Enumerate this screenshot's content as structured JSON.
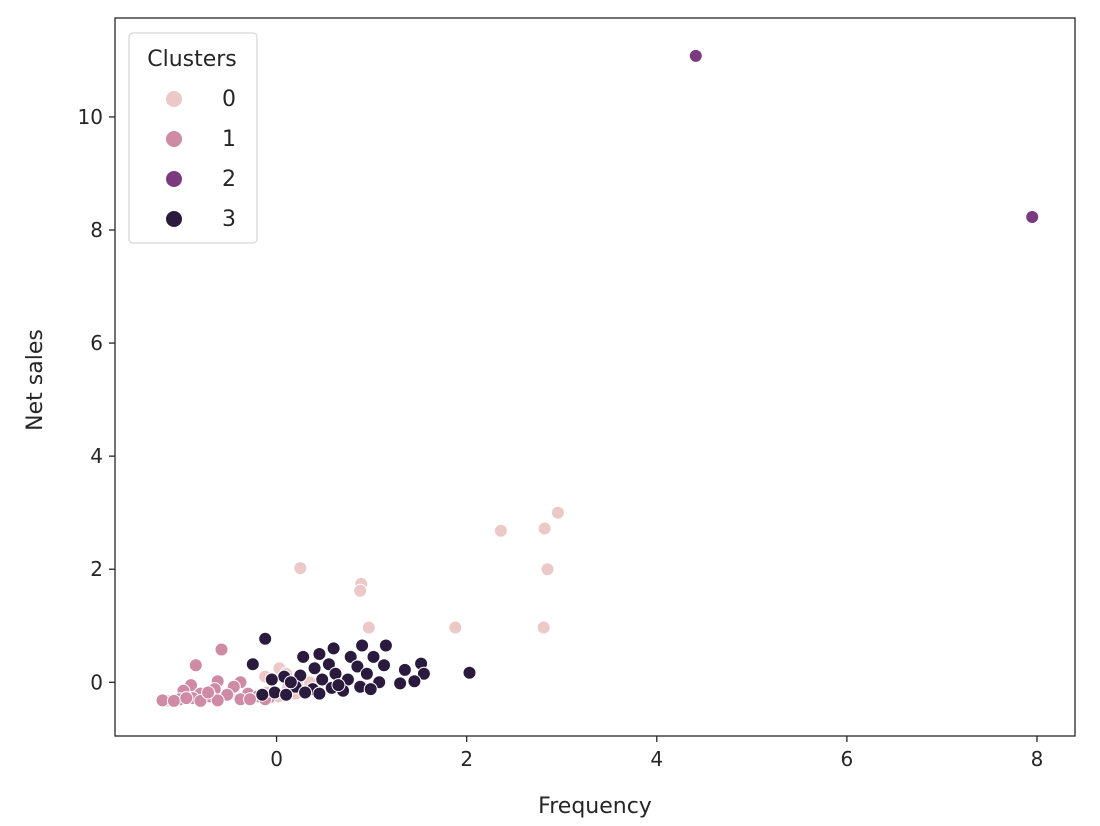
{
  "chart_data": {
    "type": "scatter",
    "title": "",
    "xlabel": "Frequency",
    "ylabel": "Net sales",
    "xlim": [
      -1.7,
      8.4
    ],
    "ylim": [
      -0.95,
      11.75
    ],
    "xticks": [
      0,
      2,
      4,
      6,
      8
    ],
    "yticks": [
      0,
      2,
      4,
      6,
      8,
      10
    ],
    "grid": false,
    "legend": {
      "title": "Clusters",
      "placement": "top-left",
      "entries": [
        "0",
        "1",
        "2",
        "3"
      ]
    },
    "series": [
      {
        "name": "0",
        "color": "#ecc9c7",
        "points": [
          [
            2.96,
            3.0
          ],
          [
            2.82,
            2.72
          ],
          [
            2.36,
            2.68
          ],
          [
            0.25,
            2.02
          ],
          [
            2.85,
            2.0
          ],
          [
            0.89,
            1.74
          ],
          [
            0.88,
            1.62
          ],
          [
            0.97,
            0.97
          ],
          [
            1.88,
            0.97
          ],
          [
            2.81,
            0.97
          ],
          [
            0.03,
            0.25
          ],
          [
            0.1,
            0.15
          ],
          [
            -0.12,
            0.1
          ],
          [
            0.22,
            -0.02
          ],
          [
            0.35,
            0.0
          ],
          [
            0.12,
            -0.1
          ],
          [
            -0.1,
            -0.18
          ],
          [
            -0.3,
            -0.2
          ],
          [
            -0.5,
            -0.22
          ],
          [
            -0.7,
            -0.25
          ],
          [
            -0.9,
            -0.28
          ],
          [
            -1.05,
            -0.3
          ],
          [
            -1.15,
            -0.33
          ],
          [
            0.02,
            -0.25
          ],
          [
            0.2,
            -0.2
          ]
        ]
      },
      {
        "name": "1",
        "color": "#d08ba4",
        "points": [
          [
            -0.58,
            0.58
          ],
          [
            -0.85,
            0.3
          ],
          [
            -0.62,
            0.02
          ],
          [
            -0.38,
            0.0
          ],
          [
            -0.9,
            -0.05
          ],
          [
            -0.45,
            -0.08
          ],
          [
            -0.65,
            -0.12
          ],
          [
            -0.98,
            -0.15
          ],
          [
            -0.8,
            -0.2
          ],
          [
            -0.3,
            -0.2
          ],
          [
            -0.52,
            -0.22
          ],
          [
            -0.7,
            -0.25
          ],
          [
            -0.88,
            -0.28
          ],
          [
            -1.02,
            -0.3
          ],
          [
            -1.2,
            -0.32
          ],
          [
            -0.2,
            -0.25
          ],
          [
            -0.08,
            -0.27
          ],
          [
            -0.38,
            -0.3
          ],
          [
            -0.62,
            -0.32
          ],
          [
            -0.8,
            -0.33
          ],
          [
            -1.08,
            -0.33
          ],
          [
            -0.95,
            -0.28
          ],
          [
            -0.28,
            -0.3
          ],
          [
            -0.12,
            -0.3
          ],
          [
            -0.72,
            -0.18
          ]
        ]
      },
      {
        "name": "2",
        "color": "#7b3a80",
        "points": [
          [
            4.41,
            11.08
          ],
          [
            7.95,
            8.23
          ]
        ]
      },
      {
        "name": "3",
        "color": "#2a1a3e",
        "points": [
          [
            -0.12,
            0.77
          ],
          [
            0.9,
            0.65
          ],
          [
            1.15,
            0.65
          ],
          [
            0.6,
            0.6
          ],
          [
            0.45,
            0.5
          ],
          [
            0.28,
            0.45
          ],
          [
            0.78,
            0.45
          ],
          [
            1.02,
            0.45
          ],
          [
            -0.25,
            0.32
          ],
          [
            0.55,
            0.32
          ],
          [
            1.13,
            0.3
          ],
          [
            1.52,
            0.33
          ],
          [
            0.4,
            0.25
          ],
          [
            0.85,
            0.28
          ],
          [
            1.35,
            0.22
          ],
          [
            2.03,
            0.17
          ],
          [
            1.55,
            0.15
          ],
          [
            0.95,
            0.15
          ],
          [
            0.62,
            0.15
          ],
          [
            0.25,
            0.12
          ],
          [
            0.08,
            0.1
          ],
          [
            0.48,
            0.05
          ],
          [
            0.75,
            0.05
          ],
          [
            1.08,
            0.0
          ],
          [
            1.3,
            -0.02
          ],
          [
            1.45,
            0.02
          ],
          [
            0.2,
            -0.08
          ],
          [
            0.38,
            -0.12
          ],
          [
            0.58,
            -0.1
          ],
          [
            0.88,
            -0.08
          ],
          [
            -0.02,
            -0.18
          ],
          [
            -0.15,
            -0.22
          ],
          [
            0.1,
            -0.22
          ],
          [
            0.3,
            -0.18
          ],
          [
            0.7,
            -0.15
          ],
          [
            0.99,
            -0.12
          ],
          [
            0.45,
            -0.2
          ],
          [
            0.15,
            0.0
          ],
          [
            -0.05,
            0.05
          ],
          [
            0.65,
            -0.05
          ]
        ]
      }
    ]
  }
}
